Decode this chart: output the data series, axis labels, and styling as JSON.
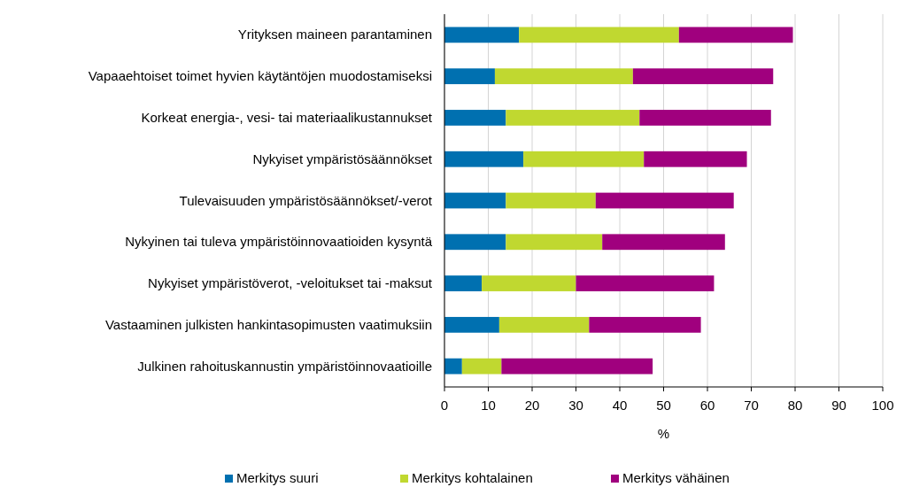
{
  "chart_data": {
    "type": "bar",
    "orientation": "horizontal",
    "stacked": true,
    "categories": [
      "Yrityksen maineen parantaminen",
      "Vapaaehtoiset toimet hyvien käytäntöjen muodostamiseksi",
      "Korkeat energia-, vesi- tai materiaalikustannukset",
      "Nykyiset ympäristösäännökset",
      "Tulevaisuuden ympäristösäännökset/-verot",
      "Nykyinen tai tuleva ympäristöinnovaatioiden kysyntä",
      "Nykyiset ympäristöverot, -veloitukset tai -maksut",
      "Vastaaminen julkisten hankintasopimusten vaatimuksiin",
      "Julkinen rahoituskannustin ympäristöinnovaatioille"
    ],
    "series": [
      {
        "name": "Merkitys suuri",
        "color": "#0070b0",
        "values": [
          17,
          11.5,
          14,
          18,
          14,
          14,
          8.5,
          12.5,
          4
        ]
      },
      {
        "name": "Merkitys kohtalainen",
        "color": "#c0d830",
        "values": [
          36.5,
          31.5,
          30.5,
          27.5,
          20.5,
          22,
          21.5,
          20.5,
          9
        ]
      },
      {
        "name": "Merkitys vähäinen",
        "color": "#a0007e",
        "values": [
          26,
          32,
          30,
          23.5,
          31.5,
          28,
          31.5,
          25.5,
          34.5
        ]
      }
    ],
    "xlabel": "%",
    "xlim": [
      0,
      100
    ],
    "xticks": [
      0,
      10,
      20,
      30,
      40,
      50,
      60,
      70,
      80,
      90,
      100
    ],
    "grid": "x",
    "legend": "bottom"
  }
}
